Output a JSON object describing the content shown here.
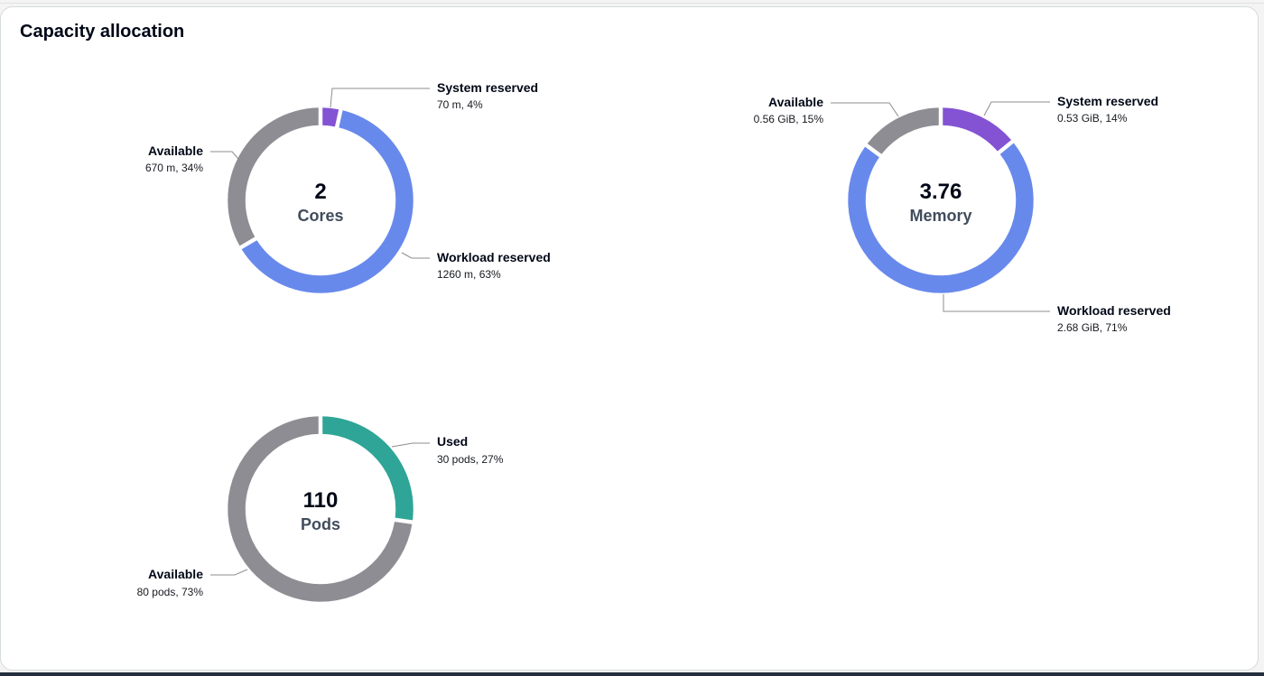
{
  "panel": {
    "title": "Capacity allocation"
  },
  "colors": {
    "available": "#8d8d93",
    "workload_reserved": "#6889ec",
    "system_reserved": "#8353d3",
    "used": "#2ea597"
  },
  "chart_data": [
    {
      "id": "cores",
      "type": "pie",
      "variant": "donut",
      "center_value": "2",
      "center_label": "Cores",
      "slices": [
        {
          "key": "system_reserved",
          "name": "System reserved",
          "detail": "70 m, 4%",
          "value": 70,
          "percent": 4
        },
        {
          "key": "workload_reserved",
          "name": "Workload reserved",
          "detail": "1260 m, 63%",
          "value": 1260,
          "percent": 63
        },
        {
          "key": "available",
          "name": "Available",
          "detail": "670 m, 34%",
          "value": 670,
          "percent": 34
        }
      ]
    },
    {
      "id": "memory",
      "type": "pie",
      "variant": "donut",
      "center_value": "3.76",
      "center_label": "Memory",
      "slices": [
        {
          "key": "system_reserved",
          "name": "System reserved",
          "detail": "0.53 GiB, 14%",
          "value": 0.53,
          "percent": 14
        },
        {
          "key": "workload_reserved",
          "name": "Workload reserved",
          "detail": "2.68 GiB, 71%",
          "value": 2.68,
          "percent": 71
        },
        {
          "key": "available",
          "name": "Available",
          "detail": "0.56 GiB, 15%",
          "value": 0.56,
          "percent": 15
        }
      ]
    },
    {
      "id": "pods",
      "type": "pie",
      "variant": "donut",
      "center_value": "110",
      "center_label": "Pods",
      "slices": [
        {
          "key": "used",
          "name": "Used",
          "detail": "30 pods, 27%",
          "value": 30,
          "percent": 27
        },
        {
          "key": "available",
          "name": "Available",
          "detail": "80 pods, 73%",
          "value": 80,
          "percent": 73
        }
      ]
    }
  ]
}
